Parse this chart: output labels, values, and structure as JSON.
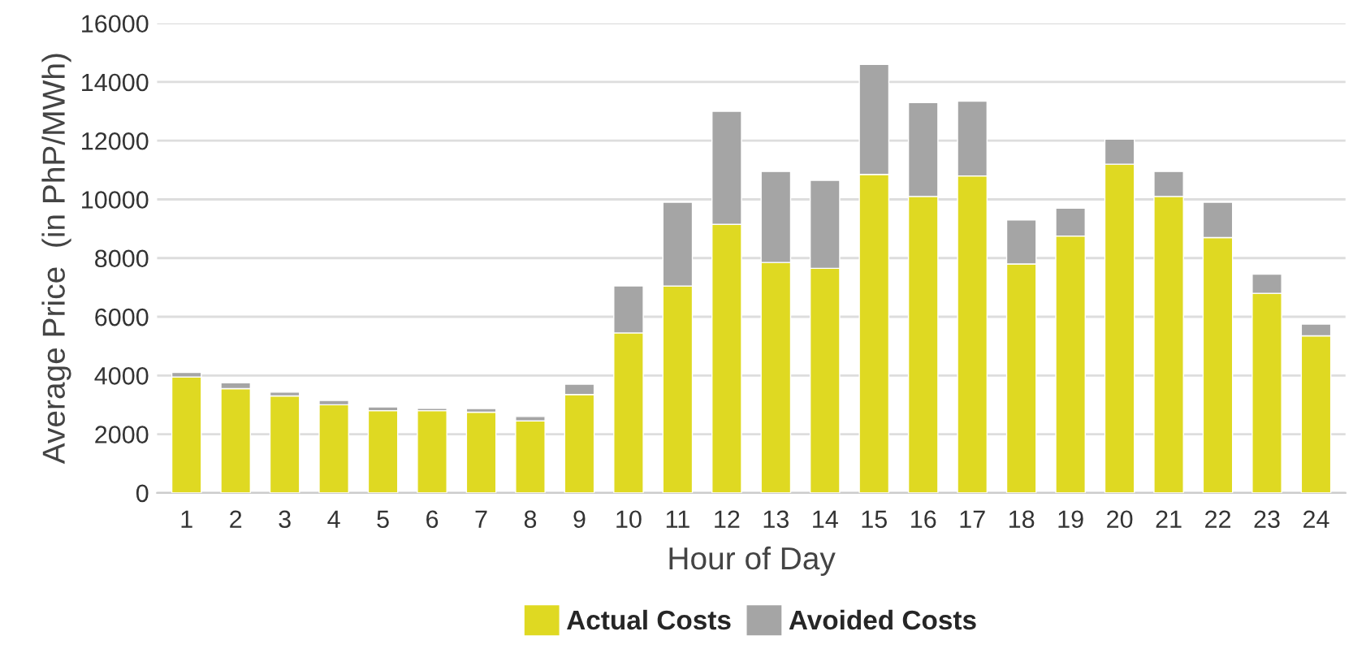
{
  "chart_data": {
    "type": "bar",
    "stacked": true,
    "xlabel": "Hour of Day",
    "ylabel": "Average Price  (in PhP/MWh)",
    "categories": [
      "1",
      "2",
      "3",
      "4",
      "5",
      "6",
      "7",
      "8",
      "9",
      "10",
      "11",
      "12",
      "13",
      "14",
      "15",
      "16",
      "17",
      "18",
      "19",
      "20",
      "21",
      "22",
      "23",
      "24"
    ],
    "series": [
      {
        "name": "Actual Costs",
        "color": "#dfd922",
        "values": [
          3950,
          3550,
          3300,
          3000,
          2800,
          2800,
          2750,
          2450,
          3350,
          5450,
          7050,
          9150,
          7850,
          7650,
          10850,
          10100,
          10800,
          7800,
          8750,
          11200,
          10100,
          8700,
          6800,
          5350
        ]
      },
      {
        "name": "Avoided Costs",
        "color": "#a5a5a5",
        "values": [
          150,
          200,
          130,
          150,
          130,
          80,
          120,
          150,
          350,
          1600,
          2850,
          3850,
          3100,
          3000,
          3750,
          3200,
          2550,
          1500,
          950,
          850,
          850,
          1200,
          650,
          400
        ]
      }
    ],
    "ylim": [
      0,
      16000
    ],
    "yticks": [
      0,
      2000,
      4000,
      6000,
      8000,
      10000,
      12000,
      14000,
      16000
    ],
    "grid": "y",
    "legend": "bottom"
  }
}
